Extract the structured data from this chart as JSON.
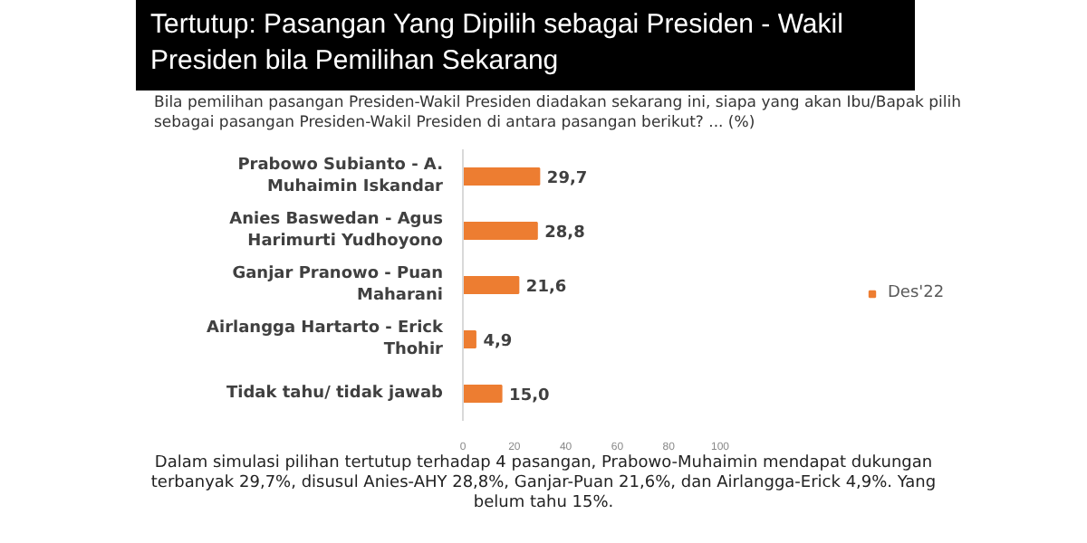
{
  "chart_data": {
    "type": "bar",
    "orientation": "horizontal",
    "title": "Tertutup: Pasangan Yang Dipilih sebagai Presiden - Wakil Presiden bila Pemilihan Sekarang",
    "subtitle": "Bila pemilihan pasangan Presiden-Wakil Presiden diadakan sekarang ini, siapa yang akan Ibu/Bapak pilih sebagai pasangan Presiden-Wakil Presiden di antara pasangan berikut? ... (%)",
    "categories": [
      "Prabowo Subianto - A. Muhaimin Iskandar",
      "Anies Baswedan - Agus Harimurti Yudhoyono",
      "Ganjar Pranowo - Puan Maharani",
      "Airlangga Hartarto - Erick Thohir",
      "Tidak tahu/ tidak jawab"
    ],
    "series": [
      {
        "name": "Des'22",
        "color": "#ed7d31",
        "values": [
          29.7,
          28.8,
          21.6,
          4.9,
          15.0
        ],
        "value_labels": [
          "29,7",
          "28,8",
          "21,6",
          "4,9",
          "15,0"
        ]
      }
    ],
    "xlim": [
      0,
      100
    ],
    "xticks": [
      0,
      20,
      40,
      60,
      80,
      100
    ],
    "grid": false,
    "legend": "right",
    "annotations": [
      "Dalam simulasi pilihan tertutup terhadap 4 pasangan, Prabowo-Muhaimin mendapat dukungan terbanyak 29,7%, disusul Anies-AHY 28,8%, Ganjar-Puan 21,6%, dan Airlangga-Erick 4,9%. Yang belum tahu 15%."
    ]
  }
}
